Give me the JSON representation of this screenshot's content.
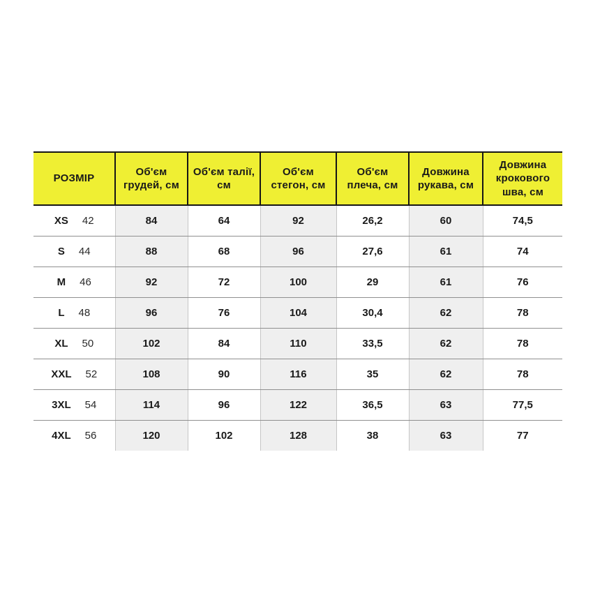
{
  "colors": {
    "header_bg": "#efef33",
    "shaded_column_bg": "#efefef",
    "header_border": "#161616",
    "row_line": "#8f8f8f",
    "column_line": "#c6c6c6",
    "text": "#1a1a1a",
    "page_bg": "#ffffff"
  },
  "chart_data": {
    "type": "table",
    "title": "",
    "columns": [
      {
        "label": "РОЗМІР",
        "shaded": false
      },
      {
        "label": "Об'єм грудей, см",
        "shaded": true
      },
      {
        "label": "Об'єм талії, см",
        "shaded": false
      },
      {
        "label": "Об'єм стегон, см",
        "shaded": true
      },
      {
        "label": "Об'єм плеча, см",
        "shaded": false
      },
      {
        "label": "Довжина рукава, см",
        "shaded": true
      },
      {
        "label": "Довжина крокового шва, см",
        "shaded": false
      }
    ],
    "rows": [
      {
        "size": "XS",
        "size_num": "42",
        "values": [
          "84",
          "64",
          "92",
          "26,2",
          "60",
          "74,5"
        ]
      },
      {
        "size": "S",
        "size_num": "44",
        "values": [
          "88",
          "68",
          "96",
          "27,6",
          "61",
          "74"
        ]
      },
      {
        "size": "M",
        "size_num": "46",
        "values": [
          "92",
          "72",
          "100",
          "29",
          "61",
          "76"
        ]
      },
      {
        "size": "L",
        "size_num": "48",
        "values": [
          "96",
          "76",
          "104",
          "30,4",
          "62",
          "78"
        ]
      },
      {
        "size": "XL",
        "size_num": "50",
        "values": [
          "102",
          "84",
          "110",
          "33,5",
          "62",
          "78"
        ]
      },
      {
        "size": "XXL",
        "size_num": "52",
        "values": [
          "108",
          "90",
          "116",
          "35",
          "62",
          "78"
        ]
      },
      {
        "size": "3XL",
        "size_num": "54",
        "values": [
          "114",
          "96",
          "122",
          "36,5",
          "63",
          "77,5"
        ]
      },
      {
        "size": "4XL",
        "size_num": "56",
        "values": [
          "120",
          "102",
          "128",
          "38",
          "63",
          "77"
        ]
      }
    ]
  }
}
